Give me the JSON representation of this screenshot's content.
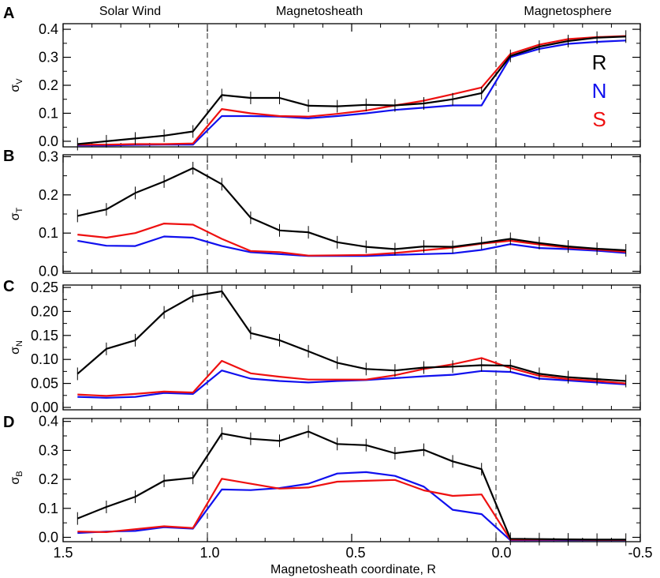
{
  "figure": {
    "xlabel": "Magnetosheath coordinate, R",
    "regions": [
      "Solar Wind",
      "Magnetosheath",
      "Magnetosphere"
    ],
    "x_tick_labels": [
      "1.5",
      "1.0",
      "0.5",
      "0.0",
      "-0.5"
    ],
    "xlim": [
      1.5,
      -0.5
    ],
    "boundaries": [
      1.0,
      0.0
    ],
    "legend": [
      {
        "label": "R",
        "color": "#000000"
      },
      {
        "label": "N",
        "color": "#1010ee"
      },
      {
        "label": "S",
        "color": "#ee1010"
      }
    ]
  },
  "chart_data": [
    {
      "type": "line",
      "panel": "A",
      "ylabel": "σ",
      "ylabel_sub": "V",
      "ylim": [
        -0.02,
        0.42
      ],
      "y_ticks": [
        0.0,
        0.1,
        0.2,
        0.3,
        0.4
      ],
      "y_tick_labels": [
        "0.0",
        "0.1",
        "0.2",
        "0.3",
        "0.4"
      ],
      "series": [
        {
          "name": "R",
          "color": "#000000",
          "errorbars": true,
          "x": [
            1.45,
            1.35,
            1.25,
            1.15,
            1.05,
            0.95,
            0.85,
            0.75,
            0.65,
            0.55,
            0.45,
            0.35,
            0.25,
            0.15,
            0.05,
            -0.05,
            -0.15,
            -0.25,
            -0.35,
            -0.45
          ],
          "values": [
            -0.01,
            0.0,
            0.01,
            0.02,
            0.035,
            0.165,
            0.155,
            0.155,
            0.127,
            0.125,
            0.13,
            0.128,
            0.135,
            0.15,
            0.172,
            0.305,
            0.338,
            0.358,
            0.37,
            0.374
          ]
        },
        {
          "name": "N",
          "color": "#1010ee",
          "errorbars": false,
          "x": [
            1.45,
            1.35,
            1.25,
            1.15,
            1.05,
            0.95,
            0.85,
            0.75,
            0.65,
            0.55,
            0.45,
            0.35,
            0.25,
            0.15,
            0.05,
            -0.05,
            -0.15,
            -0.25,
            -0.35,
            -0.45
          ],
          "values": [
            -0.015,
            -0.015,
            -0.013,
            -0.012,
            -0.012,
            0.09,
            0.09,
            0.088,
            0.082,
            0.09,
            0.1,
            0.112,
            0.12,
            0.128,
            0.128,
            0.3,
            0.33,
            0.348,
            0.355,
            0.36
          ]
        },
        {
          "name": "S",
          "color": "#ee1010",
          "errorbars": false,
          "x": [
            1.45,
            1.35,
            1.25,
            1.15,
            1.05,
            0.95,
            0.85,
            0.75,
            0.65,
            0.55,
            0.45,
            0.35,
            0.25,
            0.15,
            0.05,
            -0.05,
            -0.15,
            -0.25,
            -0.35,
            -0.45
          ],
          "values": [
            -0.012,
            -0.012,
            -0.01,
            -0.01,
            -0.008,
            0.115,
            0.1,
            0.09,
            0.088,
            0.098,
            0.11,
            0.128,
            0.145,
            0.168,
            0.192,
            0.312,
            0.345,
            0.365,
            0.372,
            0.376
          ]
        }
      ]
    },
    {
      "type": "line",
      "panel": "B",
      "ylabel": "σ",
      "ylabel_sub": "T",
      "ylim": [
        -0.005,
        0.305
      ],
      "y_ticks": [
        0.0,
        0.1,
        0.2,
        0.3
      ],
      "y_tick_labels": [
        "0.0",
        "0.1",
        "0.2",
        "0.3"
      ],
      "series": [
        {
          "name": "R",
          "color": "#000000",
          "errorbars": true,
          "x": [
            1.45,
            1.35,
            1.25,
            1.15,
            1.05,
            0.95,
            0.85,
            0.75,
            0.65,
            0.55,
            0.45,
            0.35,
            0.25,
            0.15,
            0.05,
            -0.05,
            -0.15,
            -0.25,
            -0.35,
            -0.45
          ],
          "values": [
            0.145,
            0.162,
            0.205,
            0.235,
            0.27,
            0.228,
            0.14,
            0.107,
            0.102,
            0.076,
            0.064,
            0.058,
            0.065,
            0.064,
            0.074,
            0.085,
            0.074,
            0.065,
            0.059,
            0.055
          ]
        },
        {
          "name": "N",
          "color": "#1010ee",
          "errorbars": false,
          "x": [
            1.45,
            1.35,
            1.25,
            1.15,
            1.05,
            0.95,
            0.85,
            0.75,
            0.65,
            0.55,
            0.45,
            0.35,
            0.25,
            0.15,
            0.05,
            -0.05,
            -0.15,
            -0.25,
            -0.35,
            -0.45
          ],
          "values": [
            0.08,
            0.067,
            0.066,
            0.091,
            0.088,
            0.066,
            0.05,
            0.045,
            0.04,
            0.04,
            0.04,
            0.043,
            0.045,
            0.047,
            0.056,
            0.071,
            0.061,
            0.058,
            0.054,
            0.048
          ]
        },
        {
          "name": "S",
          "color": "#ee1010",
          "errorbars": false,
          "x": [
            1.45,
            1.35,
            1.25,
            1.15,
            1.05,
            0.95,
            0.85,
            0.75,
            0.65,
            0.55,
            0.45,
            0.35,
            0.25,
            0.15,
            0.05,
            -0.05,
            -0.15,
            -0.25,
            -0.35,
            -0.45
          ],
          "values": [
            0.096,
            0.088,
            0.1,
            0.125,
            0.122,
            0.085,
            0.053,
            0.05,
            0.041,
            0.042,
            0.043,
            0.048,
            0.055,
            0.062,
            0.072,
            0.08,
            0.07,
            0.062,
            0.057,
            0.051
          ]
        }
      ]
    },
    {
      "type": "line",
      "panel": "C",
      "ylabel": "σ",
      "ylabel_sub": "N",
      "ylim": [
        -0.005,
        0.255
      ],
      "y_ticks": [
        0.0,
        0.05,
        0.1,
        0.15,
        0.2,
        0.25
      ],
      "y_tick_labels": [
        "0.00",
        "0.05",
        "0.10",
        "0.15",
        "0.20",
        "0.25"
      ],
      "series": [
        {
          "name": "R",
          "color": "#000000",
          "errorbars": true,
          "x": [
            1.45,
            1.35,
            1.25,
            1.15,
            1.05,
            0.95,
            0.85,
            0.75,
            0.65,
            0.55,
            0.45,
            0.35,
            0.25,
            0.15,
            0.05,
            -0.05,
            -0.15,
            -0.25,
            -0.35,
            -0.45
          ],
          "values": [
            0.07,
            0.122,
            0.14,
            0.198,
            0.232,
            0.242,
            0.155,
            0.14,
            0.117,
            0.093,
            0.08,
            0.077,
            0.083,
            0.085,
            0.088,
            0.087,
            0.07,
            0.063,
            0.059,
            0.055
          ]
        },
        {
          "name": "N",
          "color": "#1010ee",
          "errorbars": false,
          "x": [
            1.45,
            1.35,
            1.25,
            1.15,
            1.05,
            0.95,
            0.85,
            0.75,
            0.65,
            0.55,
            0.45,
            0.35,
            0.25,
            0.15,
            0.05,
            -0.05,
            -0.15,
            -0.25,
            -0.35,
            -0.45
          ],
          "values": [
            0.022,
            0.02,
            0.022,
            0.03,
            0.028,
            0.077,
            0.06,
            0.055,
            0.052,
            0.055,
            0.057,
            0.061,
            0.065,
            0.068,
            0.076,
            0.074,
            0.06,
            0.056,
            0.052,
            0.048
          ]
        },
        {
          "name": "S",
          "color": "#ee1010",
          "errorbars": false,
          "x": [
            1.45,
            1.35,
            1.25,
            1.15,
            1.05,
            0.95,
            0.85,
            0.75,
            0.65,
            0.55,
            0.45,
            0.35,
            0.25,
            0.15,
            0.05,
            -0.05,
            -0.15,
            -0.25,
            -0.35,
            -0.45
          ],
          "values": [
            0.027,
            0.024,
            0.028,
            0.033,
            0.031,
            0.097,
            0.071,
            0.064,
            0.058,
            0.058,
            0.058,
            0.067,
            0.08,
            0.09,
            0.103,
            0.082,
            0.066,
            0.059,
            0.055,
            0.05
          ]
        }
      ]
    },
    {
      "type": "line",
      "panel": "D",
      "ylabel": "σ",
      "ylabel_sub": "B",
      "ylim": [
        -0.015,
        0.41
      ],
      "y_ticks": [
        0.0,
        0.1,
        0.2,
        0.3,
        0.4
      ],
      "y_tick_labels": [
        "0.0",
        "0.1",
        "0.2",
        "0.3",
        "0.4"
      ],
      "series": [
        {
          "name": "R",
          "color": "#000000",
          "errorbars": true,
          "x": [
            1.45,
            1.35,
            1.25,
            1.15,
            1.05,
            0.95,
            0.85,
            0.75,
            0.65,
            0.55,
            0.45,
            0.35,
            0.25,
            0.15,
            0.05,
            -0.05,
            -0.15,
            -0.25,
            -0.35,
            -0.45
          ],
          "values": [
            0.065,
            0.105,
            0.14,
            0.195,
            0.205,
            0.358,
            0.34,
            0.333,
            0.365,
            0.322,
            0.318,
            0.29,
            0.302,
            0.262,
            0.235,
            -0.005,
            -0.006,
            -0.007,
            -0.008,
            -0.008
          ]
        },
        {
          "name": "N",
          "color": "#1010ee",
          "errorbars": false,
          "x": [
            1.45,
            1.35,
            1.25,
            1.15,
            1.05,
            0.95,
            0.85,
            0.75,
            0.65,
            0.55,
            0.45,
            0.35,
            0.25,
            0.15,
            0.05,
            -0.05,
            -0.15,
            -0.25,
            -0.35,
            -0.45
          ],
          "values": [
            0.015,
            0.02,
            0.022,
            0.035,
            0.03,
            0.165,
            0.163,
            0.17,
            0.185,
            0.22,
            0.225,
            0.212,
            0.175,
            0.095,
            0.08,
            -0.01,
            -0.01,
            -0.01,
            -0.01,
            -0.01
          ]
        },
        {
          "name": "S",
          "color": "#ee1010",
          "errorbars": false,
          "x": [
            1.45,
            1.35,
            1.25,
            1.15,
            1.05,
            0.95,
            0.85,
            0.75,
            0.65,
            0.55,
            0.45,
            0.35,
            0.25,
            0.15,
            0.05,
            -0.05,
            -0.15,
            -0.25,
            -0.35,
            -0.45
          ],
          "values": [
            0.02,
            0.018,
            0.028,
            0.038,
            0.032,
            0.202,
            0.185,
            0.168,
            0.172,
            0.192,
            0.195,
            0.198,
            0.162,
            0.143,
            0.148,
            -0.008,
            -0.008,
            -0.008,
            -0.009,
            -0.009
          ]
        }
      ]
    }
  ]
}
